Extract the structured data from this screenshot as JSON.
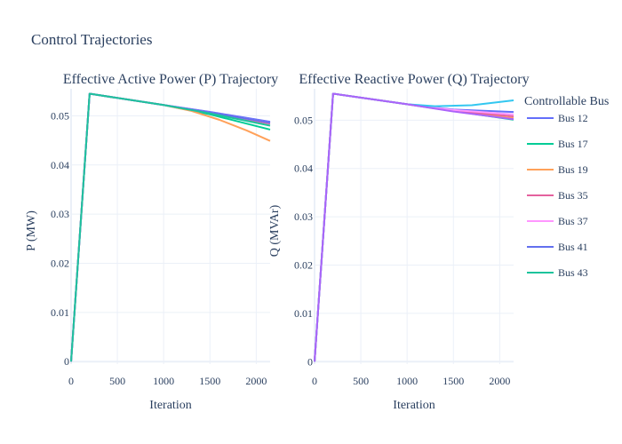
{
  "title": "Control Trajectories",
  "legend": {
    "title": "Controllable Bus",
    "items": [
      {
        "label": "Bus 12",
        "color": "#636efa"
      },
      {
        "label": "Bus 17",
        "color": "#00cc96"
      },
      {
        "label": "Bus 19",
        "color": "#ffa15a"
      },
      {
        "label": "Bus 35",
        "color": "#e4619e"
      },
      {
        "label": "Bus 37",
        "color": "#ff97ff"
      },
      {
        "label": "Bus 41",
        "color": "#6270ee"
      },
      {
        "label": "Bus 43",
        "color": "#1dc39c"
      }
    ]
  },
  "chart_data": [
    {
      "type": "line",
      "title": "Effective Active Power (P) Trajectory",
      "xlabel": "Iteration",
      "ylabel": "P (MW)",
      "xlim": [
        0,
        2150
      ],
      "ylim": [
        -0.0005,
        0.0555
      ],
      "xticks": [
        0,
        500,
        1000,
        1500,
        2000
      ],
      "xtick_labels": [
        "0",
        "500",
        "1000",
        "1500",
        "2000"
      ],
      "yticks": [
        0,
        0.01,
        0.02,
        0.03,
        0.04,
        0.05
      ],
      "ytick_labels": [
        "0",
        "0.01",
        "0.02",
        "0.03",
        "0.04",
        "0.05"
      ],
      "series": [
        {
          "name": "Bus 12",
          "color": "#636efa",
          "x": [
            0,
            200,
            1000,
            1500,
            2150
          ],
          "y": [
            0,
            0.0545,
            0.0522,
            0.0508,
            0.0488
          ]
        },
        {
          "name": "Bus 17",
          "color": "#00cc96",
          "x": [
            0,
            200,
            1000,
            1500,
            2150
          ],
          "y": [
            0,
            0.0545,
            0.0522,
            0.0503,
            0.0472
          ]
        },
        {
          "name": "Bus 19",
          "color": "#ffa15a",
          "x": [
            0,
            200,
            1000,
            1300,
            1600,
            1900,
            2150
          ],
          "y": [
            0,
            0.0545,
            0.0522,
            0.051,
            0.0492,
            0.047,
            0.0449
          ]
        },
        {
          "name": "Bus 35",
          "color": "#e4619e",
          "x": [
            0,
            200,
            1000,
            1500,
            2150
          ],
          "y": [
            0,
            0.0545,
            0.0522,
            0.0506,
            0.0484
          ]
        },
        {
          "name": "Bus 37",
          "color": "#ff97ff",
          "x": [
            0,
            200,
            1000,
            1500,
            2150
          ],
          "y": [
            0,
            0.0545,
            0.0522,
            0.0507,
            0.0486
          ]
        },
        {
          "name": "Bus 41",
          "color": "#6270ee",
          "x": [
            0,
            200,
            1000,
            1500,
            2150
          ],
          "y": [
            0,
            0.0545,
            0.0522,
            0.0507,
            0.0486
          ]
        },
        {
          "name": "Bus 43",
          "color": "#1dc39c",
          "x": [
            0,
            200,
            1000,
            1500,
            2150
          ],
          "y": [
            0,
            0.0545,
            0.0522,
            0.0505,
            0.048
          ]
        }
      ]
    },
    {
      "type": "line",
      "title": "Effective Reactive Power (Q) Trajectory",
      "xlabel": "Iteration",
      "ylabel": "Q (MVAr)",
      "xlim": [
        0,
        2150
      ],
      "ylim": [
        -0.0005,
        0.0565
      ],
      "xticks": [
        0,
        500,
        1000,
        1500,
        2000
      ],
      "xtick_labels": [
        "0",
        "500",
        "1000",
        "1500",
        "2000"
      ],
      "yticks": [
        0,
        0.01,
        0.02,
        0.03,
        0.04,
        0.05
      ],
      "ytick_labels": [
        "0",
        "0.01",
        "0.02",
        "0.03",
        "0.04",
        "0.05"
      ],
      "series": [
        {
          "name": "Bus 12",
          "color": "#636efa",
          "x": [
            0,
            200,
            1000,
            1500,
            2150
          ],
          "y": [
            0,
            0.0555,
            0.0533,
            0.0522,
            0.0517
          ]
        },
        {
          "name": "Bus 17",
          "color": "#00cc96",
          "x": [
            0,
            200,
            1000,
            1500,
            2150
          ],
          "y": [
            0,
            0.0555,
            0.0533,
            0.0519,
            0.0501
          ]
        },
        {
          "name": "Bus 19",
          "color": "#ffa15a",
          "x": [
            0,
            200,
            1000,
            1500,
            2150
          ],
          "y": [
            0,
            0.0555,
            0.0533,
            0.0519,
            0.0504
          ]
        },
        {
          "name": "Bus 35",
          "color": "#e4619e",
          "x": [
            0,
            200,
            1000,
            1500,
            2150
          ],
          "y": [
            0,
            0.0555,
            0.0533,
            0.052,
            0.0508
          ]
        },
        {
          "name": "Bus 37",
          "color": "#ff97ff",
          "x": [
            0,
            200,
            1000,
            1500,
            2150
          ],
          "y": [
            0,
            0.0555,
            0.0533,
            0.0521,
            0.0512
          ]
        },
        {
          "name": "Bus 41",
          "color": "#33c7f0",
          "x": [
            0,
            200,
            1000,
            1300,
            1700,
            2150
          ],
          "y": [
            0,
            0.0555,
            0.0533,
            0.0529,
            0.0531,
            0.0541
          ]
        },
        {
          "name": "Bus 43",
          "color": "#ab63fa",
          "x": [
            0,
            200,
            1000,
            1500,
            2150
          ],
          "y": [
            0,
            0.0555,
            0.0533,
            0.0518,
            0.0502
          ]
        }
      ]
    }
  ]
}
